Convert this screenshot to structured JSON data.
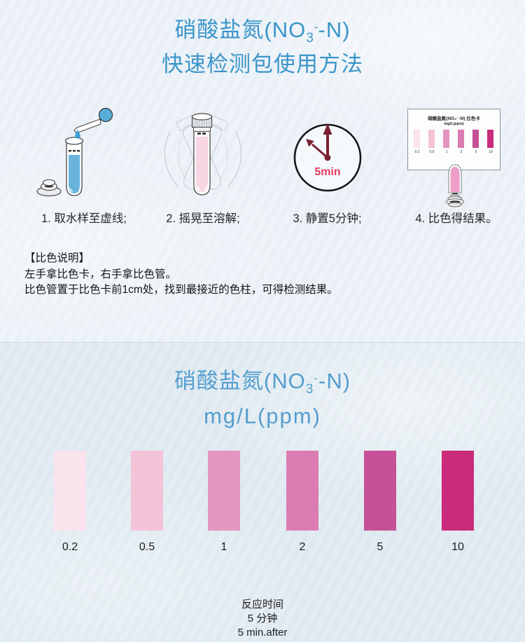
{
  "colors": {
    "bg_top": "#ecf2f8",
    "bg_bottom": "#e0eaf1",
    "title_blue": "#3b95ca",
    "scale_title_blue": "#549ecf",
    "clock_hand": "#7b2132",
    "clock_label_red": "#e63a62",
    "sample_liquid_blue": "#68b4db",
    "shaken_liquid_pink": "#f8d6e4",
    "result_tube_pink": "#ee9ec6"
  },
  "header": {
    "line1_prefix": "硝酸盐氮(NO",
    "line1_sub": "3",
    "line1_sup": "-",
    "line1_suffix": "-N)",
    "line2": "快速检测包使用方法"
  },
  "steps": [
    {
      "caption": "1. 取水样至虚线;"
    },
    {
      "caption": "2. 摇晃至溶解;"
    },
    {
      "caption": "3. 静置5分钟;"
    },
    {
      "caption": "4. 比色得结果。"
    }
  ],
  "clock": {
    "label": "5min"
  },
  "mini_card": {
    "title": "硝酸盐氮(NO₃⁻-N) 比色卡",
    "subtitle": "mg/L(ppm)"
  },
  "notes": {
    "heading": "【比色说明】",
    "line1": "左手拿比色卡，右手拿比色管。",
    "line2": "比色管置于比色卡前1cm处，找到最接近的色柱，可得检测结果。"
  },
  "scale": {
    "title_prefix": "硝酸盐氮(NO",
    "title_sub": "3",
    "title_sup": "-",
    "title_suffix": "-N)",
    "unit": "mg/L(ppm)",
    "swatches": [
      {
        "label": "0.2",
        "color": "#fae3ed"
      },
      {
        "label": "0.5",
        "color": "#f5c3d7"
      },
      {
        "label": "1",
        "color": "#e495c0"
      },
      {
        "label": "2",
        "color": "#da7cb2"
      },
      {
        "label": "5",
        "color": "#c65197"
      },
      {
        "label": "10",
        "color": "#ca2b7b"
      }
    ]
  },
  "footer": {
    "line1": "反应时间",
    "line2": "5 分钟",
    "line3": "5 min.after"
  }
}
